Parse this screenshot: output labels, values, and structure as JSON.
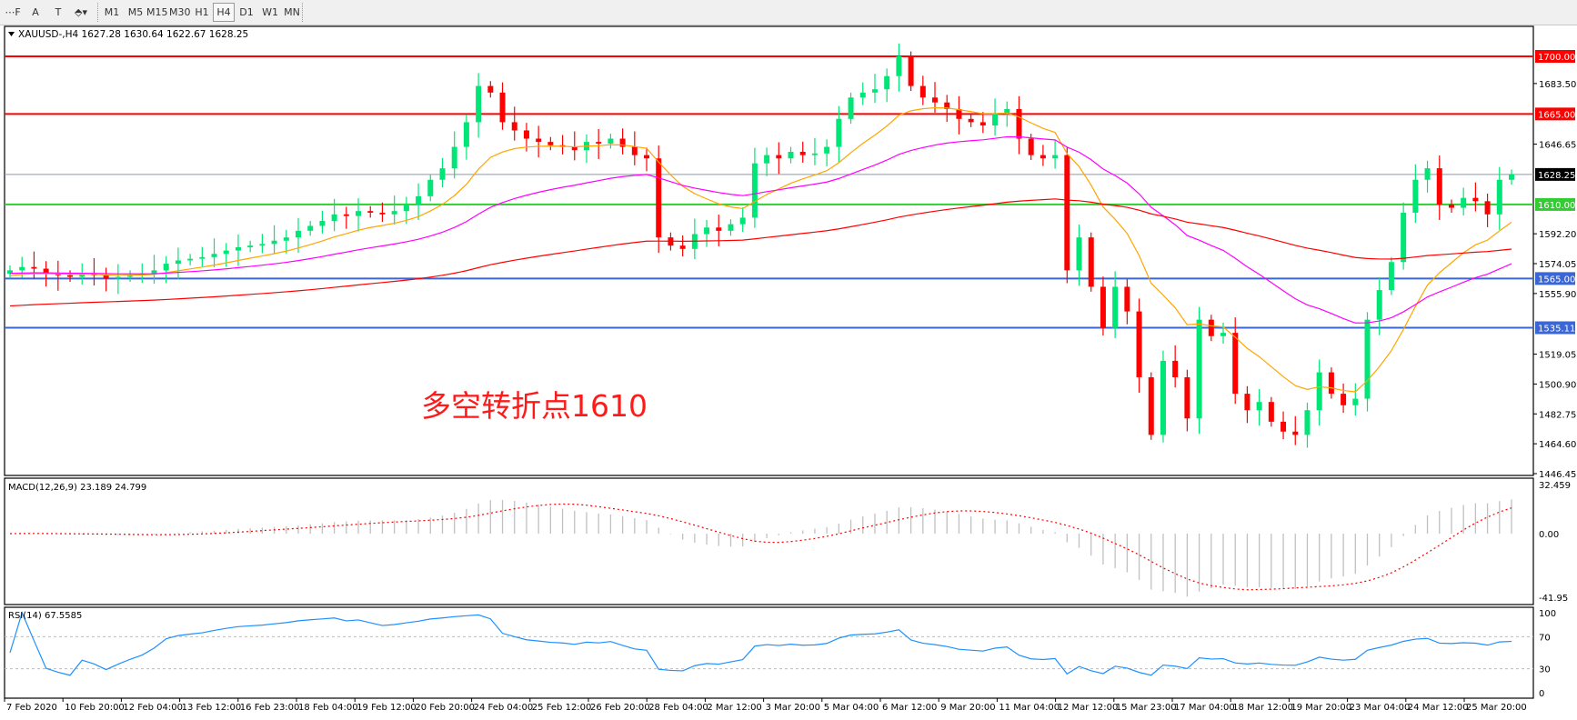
{
  "toolbar": {
    "tools": [
      {
        "name": "fibo-tool-icon",
        "glyph": "⋯F"
      },
      {
        "name": "text-tool-icon",
        "glyph": "A"
      },
      {
        "name": "text-label-tool-icon",
        "glyph": "T"
      },
      {
        "name": "arrows-tool-icon",
        "glyph": "⬘▾"
      }
    ],
    "timeframes": [
      "M1",
      "M5",
      "M15",
      "M30",
      "H1",
      "H4",
      "D1",
      "W1",
      "MN"
    ],
    "selected_timeframe": "H4"
  },
  "chart": {
    "header": "XAUUSD-,H4  1627.28 1630.64 1622.67 1628.25",
    "annotation": "多空转折点1610",
    "colors": {
      "bull": "#00e676",
      "bear": "#ff0000",
      "ma_fast": "#ffa500",
      "ma_mid": "#ff00ff",
      "ma_slow": "#ff0000",
      "rsi": "#1e90ff",
      "macd_hist": "#c0c0c0",
      "macd_signal": "#ff0000"
    }
  },
  "chart_data": {
    "type": "candlestick",
    "symbol": "XAUUSD-",
    "timeframe": "H4",
    "last_ohlc": {
      "open": 1627.28,
      "high": 1630.64,
      "low": 1622.67,
      "close": 1628.25
    },
    "ylim": [
      1446.45,
      1700.0
    ],
    "price_ticks": [
      "1683.50",
      "1646.65",
      "1592.20",
      "1574.05",
      "1555.90",
      "1519.05",
      "1500.90",
      "1482.75",
      "1464.60",
      "1446.45"
    ],
    "current_price": "1628.25",
    "levels": [
      {
        "value": 1700.0,
        "label": "1700.00",
        "color": "#ff0000"
      },
      {
        "value": 1665.0,
        "label": "1665.00",
        "color": "#ff0000"
      },
      {
        "value": 1610.0,
        "label": "1610.00",
        "color": "#33cc33"
      },
      {
        "value": 1565.0,
        "label": "1565.00",
        "color": "#3a66d6"
      },
      {
        "value": 1535.11,
        "label": "1535.11",
        "color": "#3a66d6"
      }
    ],
    "closes": [
      1570,
      1572,
      1571,
      1568,
      1567,
      1566,
      1568,
      1567,
      1565,
      1566,
      1567,
      1568,
      1570,
      1574,
      1576,
      1577,
      1578,
      1580,
      1582,
      1584,
      1585,
      1586,
      1588,
      1590,
      1594,
      1597,
      1600,
      1604,
      1603,
      1606,
      1605,
      1604,
      1606,
      1610,
      1615,
      1625,
      1632,
      1645,
      1660,
      1682,
      1678,
      1660,
      1655,
      1650,
      1648,
      1646,
      1645,
      1643,
      1648,
      1647,
      1650,
      1645,
      1640,
      1638,
      1590,
      1585,
      1583,
      1592,
      1596,
      1594,
      1598,
      1602,
      1635,
      1640,
      1638,
      1642,
      1640,
      1641,
      1645,
      1662,
      1675,
      1678,
      1680,
      1688,
      1700,
      1682,
      1675,
      1672,
      1668,
      1662,
      1660,
      1658,
      1665,
      1668,
      1650,
      1640,
      1638,
      1640,
      1570,
      1590,
      1560,
      1535,
      1560,
      1545,
      1505,
      1470,
      1515,
      1505,
      1480,
      1540,
      1530,
      1532,
      1495,
      1485,
      1490,
      1478,
      1472,
      1470,
      1485,
      1508,
      1495,
      1488,
      1492,
      1540,
      1558,
      1575,
      1605,
      1625,
      1632,
      1610,
      1608,
      1614,
      1612,
      1604,
      1625,
      1628.25
    ],
    "x_labels": [
      "7 Feb 2020",
      "10 Feb 20:00",
      "12 Feb 04:00",
      "13 Feb 12:00",
      "16 Feb 23:00",
      "18 Feb 04:00",
      "19 Feb 12:00",
      "20 Feb 20:00",
      "24 Feb 04:00",
      "25 Feb 12:00",
      "26 Feb 20:00",
      "28 Feb 04:00",
      "2 Mar 12:00",
      "3 Mar 20:00",
      "5 Mar 04:00",
      "6 Mar 12:00",
      "9 Mar 20:00",
      "11 Mar 04:00",
      "12 Mar 12:00",
      "15 Mar 23:00",
      "17 Mar 04:00",
      "18 Mar 12:00",
      "19 Mar 20:00",
      "23 Mar 04:00",
      "24 Mar 12:00",
      "25 Mar 20:00"
    ],
    "macd": {
      "label": "MACD(12,26,9) 23.189 24.799",
      "ylim": [
        -41.95,
        32.459
      ],
      "ticks": [
        "32.459",
        "0.00",
        "-41.95"
      ]
    },
    "rsi": {
      "label": "RSI(14) 67.5585",
      "ylim": [
        0,
        100
      ],
      "ticks": [
        "100",
        "70",
        "30",
        "0"
      ],
      "levels": [
        70,
        30
      ]
    }
  }
}
